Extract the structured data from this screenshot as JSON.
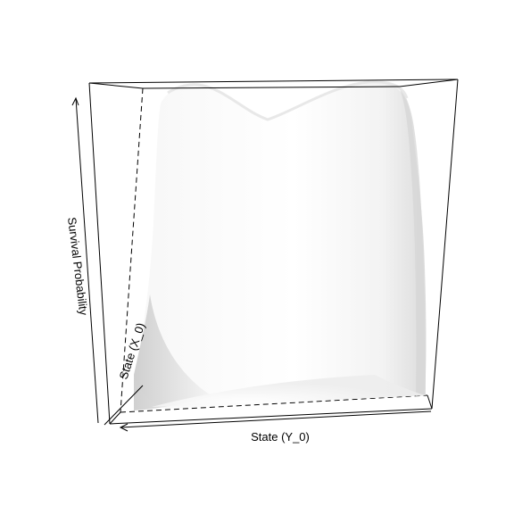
{
  "chart_data": {
    "type": "surface",
    "title": "",
    "xlabel": "State (Y_0)",
    "ylabel": "State (X_0)",
    "zlabel": "Survival Probability",
    "grid": false,
    "legend": "none",
    "colors": {
      "surface_light": "#ffffff",
      "surface_mid": "#f1f1f1",
      "surface_shadow": "#cfcfcf",
      "box": "#000000"
    }
  }
}
